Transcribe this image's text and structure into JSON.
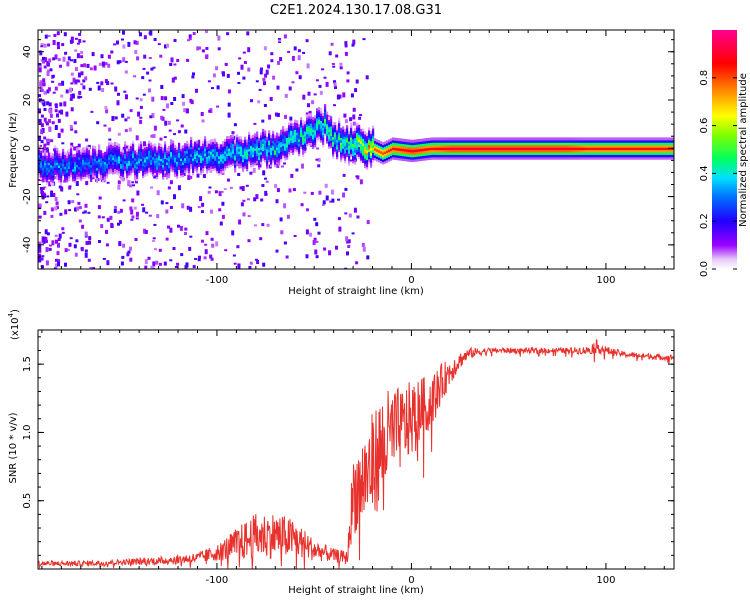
{
  "title": "C2E1.2024.130.17.08.G31",
  "chart_data": [
    {
      "type": "heatmap",
      "name": "spectrogram",
      "xlabel": "Height of straight line (km)",
      "ylabel": "Frequency (Hz)",
      "xlim": [
        -192,
        135
      ],
      "ylim": [
        -50,
        49
      ],
      "x_ticks": [
        -100,
        0,
        100
      ],
      "x_tick_labels": [
        "-100",
        "0",
        "100"
      ],
      "y_ticks": [
        -40,
        -20,
        0,
        20,
        40
      ],
      "y_tick_labels": [
        "-40",
        "-20",
        "0",
        "20",
        "40"
      ],
      "colorbar": {
        "label": "Normalized spectral amplitude",
        "range": [
          0,
          1
        ],
        "ticks": [
          0.0,
          0.2,
          0.4,
          0.6,
          0.8
        ],
        "tick_labels": [
          "0.0",
          "0.2",
          "0.4",
          "0.6",
          "0.8"
        ]
      },
      "ridge": {
        "x": [
          -192,
          -180,
          -160,
          -140,
          -120,
          -100,
          -80,
          -70,
          -60,
          -50,
          -45,
          -40,
          -30,
          -20,
          -15,
          -10,
          0,
          10,
          20,
          40,
          60,
          80,
          90,
          100,
          120,
          135
        ],
        "freq": [
          -7,
          -7,
          -6,
          -5,
          -4,
          -3,
          -1,
          1,
          4,
          8,
          10,
          4,
          2,
          0,
          -2,
          0,
          -1,
          0,
          0,
          0,
          0,
          0,
          0,
          0,
          0,
          0
        ],
        "peak_amplitude": [
          0.35,
          0.35,
          0.35,
          0.38,
          0.38,
          0.4,
          0.45,
          0.45,
          0.45,
          0.45,
          0.5,
          0.5,
          0.55,
          0.8,
          0.8,
          0.85,
          0.9,
          0.85,
          0.9,
          0.9,
          0.9,
          0.9,
          0.85,
          0.85,
          0.85,
          0.85
        ]
      }
    },
    {
      "type": "line",
      "name": "snr",
      "xlabel": "Height of straight line (km)",
      "ylabel": "SNR (10 * v/v)",
      "multiplier_label": "(x10",
      "multiplier_exponent": "4",
      "multiplier_close": ")",
      "xlim": [
        -192,
        135
      ],
      "ylim": [
        0,
        1.75
      ],
      "x_ticks": [
        -100,
        0,
        100
      ],
      "x_tick_labels": [
        "-100",
        "0",
        "100"
      ],
      "y_ticks": [
        0.5,
        1.0,
        1.5
      ],
      "y_tick_labels": [
        "0.5",
        "1.0",
        "1.5"
      ],
      "series": [
        {
          "color": "#e8312c",
          "x": [
            -192,
            -170,
            -150,
            -130,
            -110,
            -100,
            -90,
            -80,
            -70,
            -60,
            -50,
            -40,
            -33,
            -30,
            -25,
            -20,
            -15,
            -10,
            -5,
            0,
            5,
            10,
            15,
            20,
            25,
            30,
            40,
            50,
            60,
            70,
            80,
            90,
            95,
            100,
            110,
            120,
            130,
            135
          ],
          "y": [
            0.04,
            0.04,
            0.05,
            0.06,
            0.08,
            0.12,
            0.18,
            0.24,
            0.25,
            0.22,
            0.14,
            0.1,
            0.08,
            0.55,
            0.65,
            0.75,
            0.9,
            0.98,
            1.03,
            1.1,
            1.18,
            1.23,
            1.35,
            1.45,
            1.53,
            1.58,
            1.6,
            1.6,
            1.6,
            1.6,
            1.6,
            1.6,
            1.63,
            1.6,
            1.57,
            1.56,
            1.55,
            1.55
          ],
          "noise": [
            0.02,
            0.02,
            0.02,
            0.03,
            0.04,
            0.06,
            0.12,
            0.17,
            0.17,
            0.14,
            0.08,
            0.05,
            0.05,
            0.3,
            0.35,
            0.4,
            0.4,
            0.35,
            0.3,
            0.28,
            0.22,
            0.2,
            0.15,
            0.1,
            0.06,
            0.04,
            0.02,
            0.02,
            0.02,
            0.02,
            0.02,
            0.03,
            0.05,
            0.03,
            0.02,
            0.02,
            0.02,
            0.02
          ]
        }
      ]
    }
  ]
}
